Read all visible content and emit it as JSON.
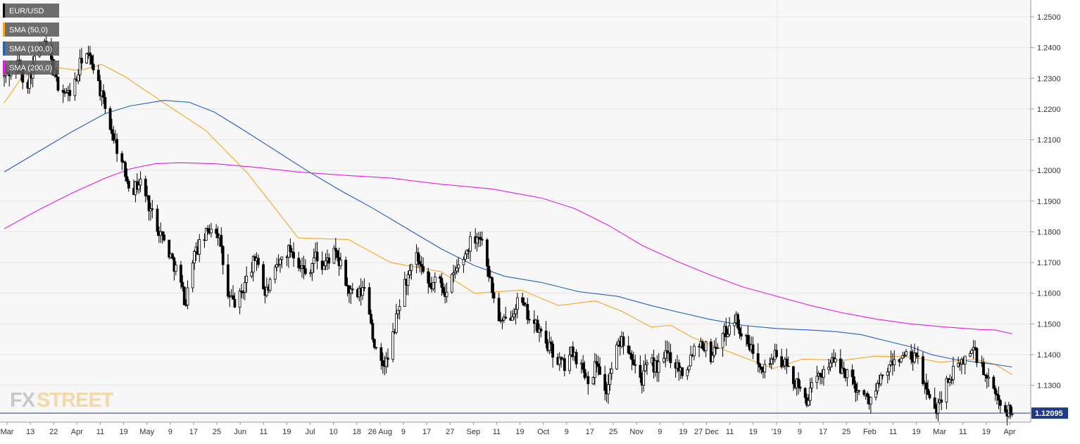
{
  "chart_data": {
    "type": "candlestick",
    "symbol": "EUR/USD",
    "ylim": [
      1.118,
      1.2555
    ],
    "y_ticks": [
      1.13,
      1.14,
      1.15,
      1.16,
      1.17,
      1.18,
      1.19,
      1.2,
      1.21,
      1.22,
      1.23,
      1.24,
      1.25
    ],
    "y_tick_labels": [
      "1.1300",
      "1.1400",
      "1.1500",
      "1.1600",
      "1.1700",
      "1.1800",
      "1.1900",
      "1.2000",
      "1.2100",
      "1.2200",
      "1.2300",
      "1.2400",
      "1.2500"
    ],
    "last_price": 1.12095,
    "last_price_label": "1.12095",
    "x_tick_labels": [
      "Mar",
      "13",
      "22",
      "Apr",
      "11",
      "19",
      "May",
      "9",
      "17",
      "25",
      "Jun",
      "11",
      "19",
      "Jul",
      "10",
      "18",
      "26 Aug",
      "9",
      "17",
      "27",
      "Sep",
      "11",
      "19",
      "Oct",
      "9",
      "17",
      "25",
      "Nov",
      "9",
      "19",
      "27 Dec",
      "11",
      "19",
      "'19",
      "9",
      "17",
      "25",
      "Feb",
      "11",
      "19",
      "Mar",
      "11",
      "19",
      "Apr"
    ],
    "legend": {
      "placement": "top-left",
      "items": [
        {
          "label": "EUR/USD",
          "color": "#000000"
        },
        {
          "label": "SMA (50,0)",
          "color": "#f5a623"
        },
        {
          "label": "SMA (100,0)",
          "color": "#1f5fbf"
        },
        {
          "label": "SMA (200,0)",
          "color": "#e020e0"
        }
      ]
    },
    "sma": [
      {
        "name": "SMA (50,0)",
        "color": "#f5a623",
        "points": [
          [
            0,
            1.222
          ],
          [
            10,
            1.23
          ],
          [
            25,
            1.234
          ],
          [
            45,
            1.2325
          ],
          [
            58,
            1.2345
          ],
          [
            72,
            1.2305
          ],
          [
            95,
            1.222
          ],
          [
            120,
            1.213
          ],
          [
            145,
            1.199
          ],
          [
            175,
            1.178
          ],
          [
            205,
            1.1775
          ],
          [
            230,
            1.17
          ],
          [
            260,
            1.167
          ],
          [
            280,
            1.16
          ],
          [
            308,
            1.161
          ],
          [
            330,
            1.156
          ],
          [
            352,
            1.1575
          ],
          [
            368,
            1.154
          ],
          [
            385,
            1.149
          ],
          [
            397,
            1.1495
          ],
          [
            410,
            1.1455
          ],
          [
            424,
            1.1425
          ],
          [
            443,
            1.1385
          ],
          [
            458,
            1.1355
          ],
          [
            475,
            1.1385
          ],
          [
            500,
            1.1382
          ],
          [
            518,
            1.1395
          ],
          [
            540,
            1.1393
          ],
          [
            557,
            1.1375
          ],
          [
            578,
            1.1385
          ],
          [
            590,
            1.1368
          ],
          [
            600,
            1.1335
          ]
        ]
      },
      {
        "name": "SMA (100,0)",
        "color": "#1f5fbf",
        "points": [
          [
            0,
            1.1995
          ],
          [
            20,
            1.206
          ],
          [
            40,
            1.2125
          ],
          [
            60,
            1.2185
          ],
          [
            75,
            1.221
          ],
          [
            95,
            1.2228
          ],
          [
            110,
            1.2222
          ],
          [
            125,
            1.219
          ],
          [
            140,
            1.214
          ],
          [
            160,
            1.207
          ],
          [
            180,
            1.2
          ],
          [
            200,
            1.1935
          ],
          [
            220,
            1.1875
          ],
          [
            240,
            1.181
          ],
          [
            260,
            1.1745
          ],
          [
            280,
            1.169
          ],
          [
            298,
            1.1655
          ],
          [
            320,
            1.1635
          ],
          [
            342,
            1.1605
          ],
          [
            365,
            1.159
          ],
          [
            385,
            1.156
          ],
          [
            400,
            1.154
          ],
          [
            420,
            1.1515
          ],
          [
            440,
            1.1495
          ],
          [
            460,
            1.1485
          ],
          [
            480,
            1.148
          ],
          [
            495,
            1.1475
          ],
          [
            510,
            1.1465
          ],
          [
            525,
            1.1445
          ],
          [
            540,
            1.1425
          ],
          [
            552,
            1.14
          ],
          [
            565,
            1.1385
          ],
          [
            580,
            1.1375
          ],
          [
            590,
            1.1368
          ],
          [
            600,
            1.136
          ]
        ]
      },
      {
        "name": "SMA (200,0)",
        "color": "#e020e0",
        "points": [
          [
            0,
            1.181
          ],
          [
            20,
            1.187
          ],
          [
            40,
            1.1925
          ],
          [
            60,
            1.1975
          ],
          [
            75,
            1.2005
          ],
          [
            90,
            1.2022
          ],
          [
            105,
            1.2025
          ],
          [
            125,
            1.2022
          ],
          [
            150,
            1.201
          ],
          [
            175,
            1.1995
          ],
          [
            200,
            1.1985
          ],
          [
            230,
            1.1975
          ],
          [
            260,
            1.1955
          ],
          [
            290,
            1.194
          ],
          [
            320,
            1.191
          ],
          [
            340,
            1.1875
          ],
          [
            360,
            1.182
          ],
          [
            380,
            1.1755
          ],
          [
            400,
            1.1705
          ],
          [
            420,
            1.166
          ],
          [
            440,
            1.162
          ],
          [
            460,
            1.159
          ],
          [
            480,
            1.156
          ],
          [
            500,
            1.1535
          ],
          [
            520,
            1.1515
          ],
          [
            540,
            1.15
          ],
          [
            560,
            1.149
          ],
          [
            580,
            1.1482
          ],
          [
            590,
            1.148
          ],
          [
            600,
            1.1468
          ]
        ]
      }
    ],
    "candles_close_path": [
      [
        0,
        1.2305
      ],
      [
        10,
        1.2345
      ],
      [
        17,
        1.2275
      ],
      [
        25,
        1.2385
      ],
      [
        32,
        1.2405
      ],
      [
        40,
        1.2285
      ],
      [
        48,
        1.2245
      ],
      [
        55,
        1.2295
      ],
      [
        60,
        1.239
      ],
      [
        68,
        1.2345
      ],
      [
        75,
        1.2225
      ],
      [
        82,
        1.2125
      ],
      [
        90,
        1.2015
      ],
      [
        97,
        1.1935
      ],
      [
        104,
        1.1965
      ],
      [
        111,
        1.1875
      ],
      [
        118,
        1.1805
      ],
      [
        125,
        1.1735
      ],
      [
        132,
        1.1665
      ],
      [
        138,
        1.1565
      ],
      [
        143,
        1.1715
      ],
      [
        150,
        1.1765
      ],
      [
        158,
        1.1825
      ],
      [
        163,
        1.1795
      ],
      [
        170,
        1.1585
      ],
      [
        177,
        1.1565
      ],
      [
        185,
        1.1655
      ],
      [
        192,
        1.1725
      ],
      [
        198,
        1.1595
      ],
      [
        205,
        1.1655
      ],
      [
        212,
        1.1725
      ],
      [
        218,
        1.1745
      ],
      [
        225,
        1.1695
      ],
      [
        230,
        1.1655
      ],
      [
        236,
        1.1725
      ],
      [
        242,
        1.1685
      ],
      [
        250,
        1.1735
      ],
      [
        256,
        1.1685
      ],
      [
        262,
        1.1605
      ],
      [
        268,
        1.1585
      ],
      [
        275,
        1.1625
      ],
      [
        280,
        1.1465
      ],
      [
        285,
        1.1355
      ],
      [
        292,
        1.1385
      ],
      [
        298,
        1.1515
      ],
      [
        303,
        1.1625
      ],
      [
        308,
        1.1655
      ],
      [
        313,
        1.1725
      ],
      [
        318,
        1.1655
      ],
      [
        324,
        1.1615
      ],
      [
        330,
        1.1655
      ],
      [
        336,
        1.1595
      ],
      [
        342,
        1.1665
      ],
      [
        348,
        1.1705
      ],
      [
        354,
        1.1765
      ],
      [
        360,
        1.1795
      ],
      [
        365,
        1.1755
      ],
      [
        370,
        1.1625
      ],
      [
        374,
        1.1545
      ],
      [
        378,
        1.1495
      ],
      [
        384,
        1.1525
      ],
      [
        390,
        1.1575
      ],
      [
        396,
        1.1545
      ],
      [
        402,
        1.1505
      ],
      [
        408,
        1.1465
      ],
      [
        414,
        1.1425
      ],
      [
        420,
        1.1385
      ],
      [
        426,
        1.1365
      ],
      [
        432,
        1.1415
      ],
      [
        438,
        1.1365
      ],
      [
        445,
        1.1315
      ],
      [
        451,
        1.1385
      ],
      [
        457,
        1.1265
      ],
      [
        464,
        1.1405
      ],
      [
        470,
        1.1455
      ],
      [
        477,
        1.1405
      ],
      [
        484,
        1.1315
      ],
      [
        490,
        1.1375
      ],
      [
        497,
        1.1355
      ],
      [
        504,
        1.1405
      ],
      [
        510,
        1.1375
      ],
      [
        517,
        1.1335
      ],
      [
        524,
        1.1425
      ],
      [
        530,
        1.1445
      ],
      [
        537,
        1.1395
      ],
      [
        543,
        1.1445
      ],
      [
        550,
        1.1485
      ],
      [
        555,
        1.1525
      ],
      [
        560,
        1.1475
      ],
      [
        566,
        1.1425
      ],
      [
        572,
        1.1395
      ],
      [
        578,
        1.1355
      ],
      [
        584,
        1.1395
      ],
      [
        590,
        1.1385
      ],
      [
        597,
        1.1345
      ],
      [
        604,
        1.1285
      ],
      [
        610,
        1.1255
      ],
      [
        616,
        1.1305
      ],
      [
        622,
        1.1345
      ],
      [
        628,
        1.1385
      ],
      [
        634,
        1.1355
      ],
      [
        640,
        1.1345
      ],
      [
        646,
        1.1305
      ],
      [
        652,
        1.1265
      ],
      [
        658,
        1.1255
      ],
      [
        664,
        1.1295
      ],
      [
        670,
        1.1345
      ],
      [
        676,
        1.1375
      ],
      [
        682,
        1.1395
      ],
      [
        688,
        1.1385
      ],
      [
        694,
        1.1385
      ],
      [
        700,
        1.1295
      ],
      [
        706,
        1.1205
      ],
      [
        712,
        1.1265
      ],
      [
        718,
        1.1325
      ],
      [
        724,
        1.1355
      ],
      [
        730,
        1.1385
      ],
      [
        736,
        1.1425
      ],
      [
        742,
        1.1365
      ],
      [
        748,
        1.1305
      ],
      [
        754,
        1.1265
      ],
      [
        760,
        1.1225
      ],
      [
        766,
        1.12095
      ]
    ]
  }
}
